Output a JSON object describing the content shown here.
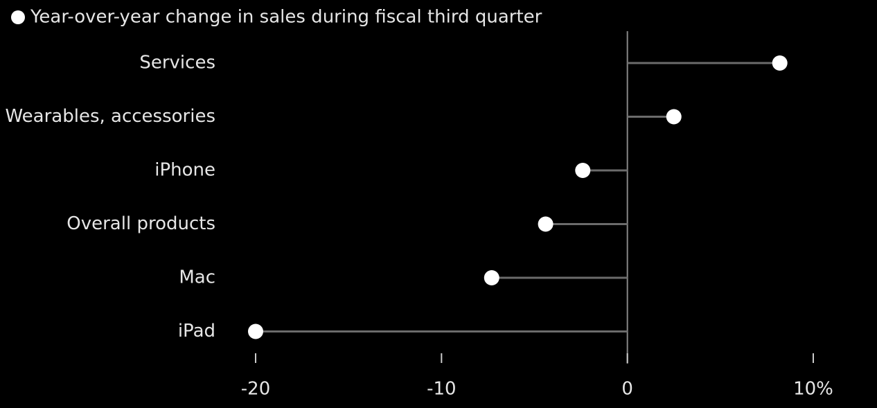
{
  "chart_data": {
    "type": "lollipop",
    "orientation": "horizontal",
    "categories": [
      "Services",
      "Wearables, accessories",
      "iPhone",
      "Overall products",
      "Mac",
      "iPad"
    ],
    "series": [
      {
        "name": "Year-over-year change in sales during fiscal third quarter",
        "color": "#ffffff",
        "values": [
          8.2,
          2.5,
          -2.4,
          -4.4,
          -7.3,
          -20.0
        ]
      }
    ],
    "stem_color": "#6b6b6b",
    "xlim": [
      -20,
      10
    ],
    "xticks": [
      -20,
      -10,
      0,
      {
        "value": 10,
        "label": "10%"
      }
    ]
  }
}
